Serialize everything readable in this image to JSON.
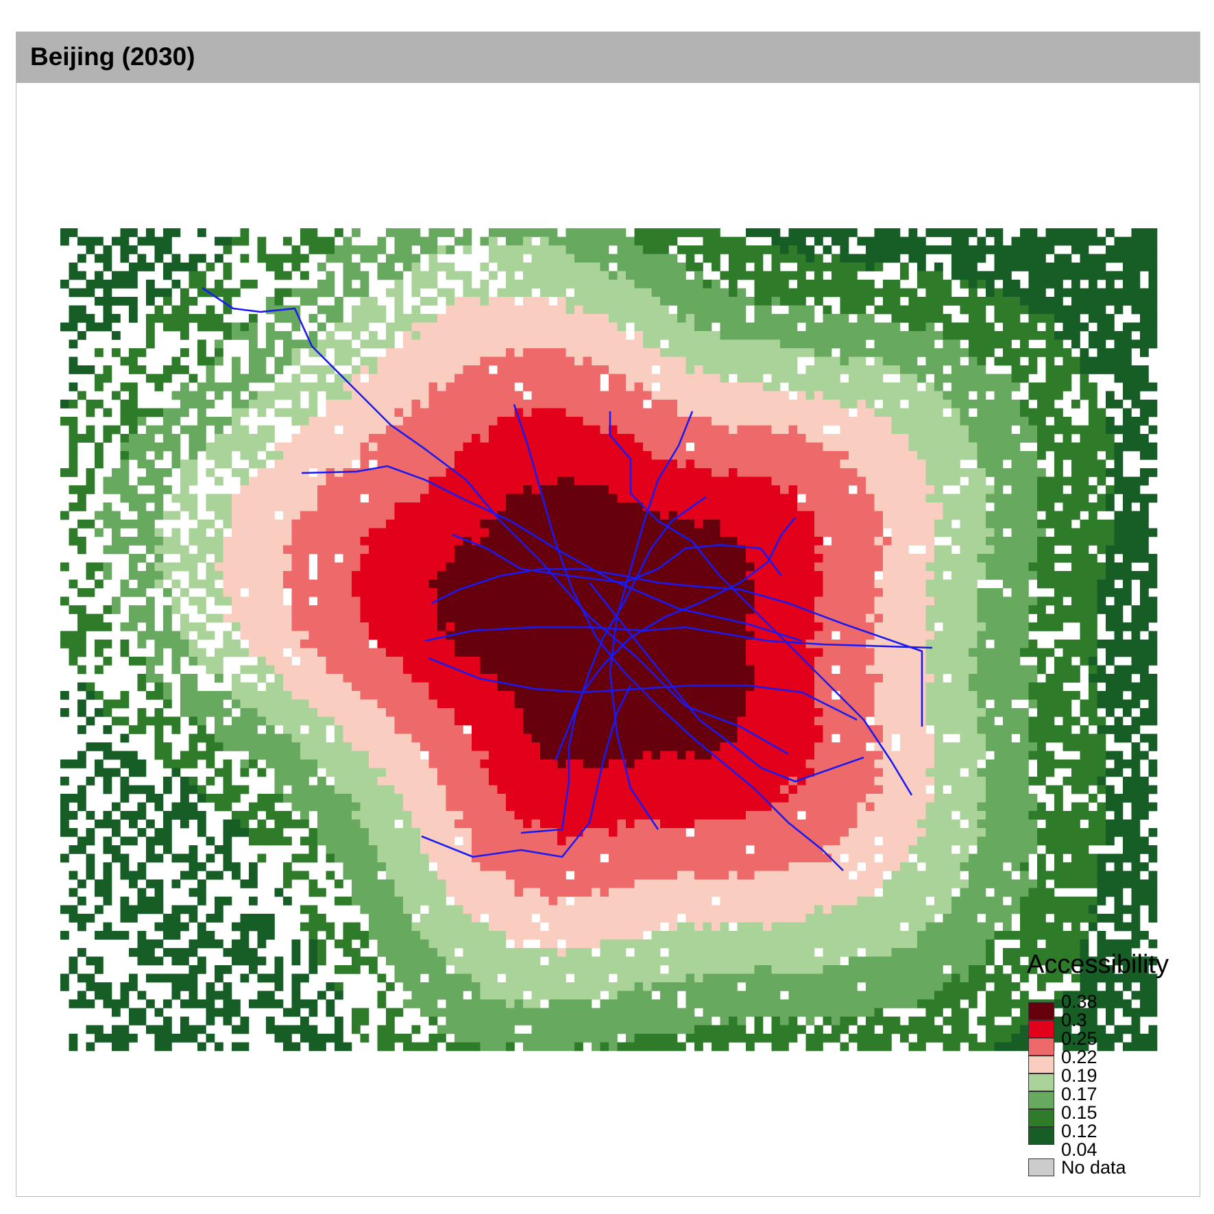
{
  "title": "Beijing (2030)",
  "legend": {
    "title": "Accessibility",
    "breaks": [
      "0.38",
      "0.3",
      "0.25",
      "0.22",
      "0.19",
      "0.17",
      "0.15",
      "0.12",
      "0.04"
    ],
    "colors": [
      "#67000d",
      "#e3001b",
      "#ee6a6a",
      "#f9cdbf",
      "#aad39a",
      "#68a960",
      "#2e7b2a",
      "#175d26"
    ],
    "no_data_label": "No data",
    "no_data_color": "#cccccc"
  },
  "transit_color": "#1a1af0"
}
